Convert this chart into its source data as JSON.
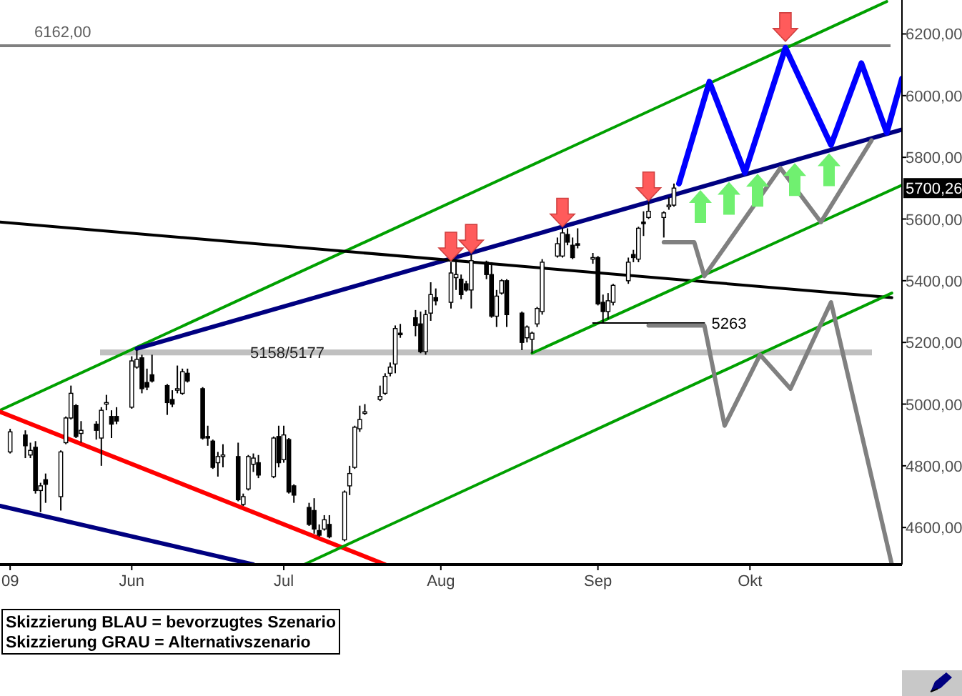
{
  "chart_data": {
    "type": "candlestick",
    "x": [
      "2009-05-08",
      "2009-05-11",
      "2009-05-12",
      "2009-05-13",
      "2009-05-14",
      "2009-05-15",
      "2009-05-18",
      "2009-05-19",
      "2009-05-20",
      "2009-05-21",
      "2009-05-22",
      "2009-05-25",
      "2009-05-26",
      "2009-05-27",
      "2009-05-28",
      "2009-05-29",
      "2009-06-01",
      "2009-06-02",
      "2009-06-03",
      "2009-06-04",
      "2009-06-05",
      "2009-06-08",
      "2009-06-09",
      "2009-06-10",
      "2009-06-11",
      "2009-06-12",
      "2009-06-15",
      "2009-06-16",
      "2009-06-17",
      "2009-06-18",
      "2009-06-19",
      "2009-06-22",
      "2009-06-23",
      "2009-06-24",
      "2009-06-25",
      "2009-06-26",
      "2009-06-29",
      "2009-06-30",
      "2009-07-01",
      "2009-07-02",
      "2009-07-03",
      "2009-07-06",
      "2009-07-07",
      "2009-07-08",
      "2009-07-09",
      "2009-07-10",
      "2009-07-13",
      "2009-07-14",
      "2009-07-15",
      "2009-07-16",
      "2009-07-17",
      "2009-07-20",
      "2009-07-21",
      "2009-07-22",
      "2009-07-23",
      "2009-07-24",
      "2009-07-27",
      "2009-07-28",
      "2009-07-29",
      "2009-07-30",
      "2009-07-31",
      "2009-08-03",
      "2009-08-04",
      "2009-08-05",
      "2009-08-06",
      "2009-08-07",
      "2009-08-10",
      "2009-08-11",
      "2009-08-12",
      "2009-08-13",
      "2009-08-14",
      "2009-08-17",
      "2009-08-18",
      "2009-08-19",
      "2009-08-20",
      "2009-08-21",
      "2009-08-24",
      "2009-08-25",
      "2009-08-26",
      "2009-08-27",
      "2009-08-28",
      "2009-08-31",
      "2009-09-01",
      "2009-09-02",
      "2009-09-03",
      "2009-09-04",
      "2009-09-07",
      "2009-09-08",
      "2009-09-09",
      "2009-09-10",
      "2009-09-11",
      "2009-09-14",
      "2009-09-15",
      "2009-09-16"
    ],
    "ohlc": [
      [
        4845,
        4920,
        4840,
        4910
      ],
      [
        4900,
        4915,
        4825,
        4865
      ],
      [
        4835,
        4875,
        4825,
        4850
      ],
      [
        4860,
        4880,
        4710,
        4720
      ],
      [
        4720,
        4745,
        4650,
        4735
      ],
      [
        4755,
        4775,
        4680,
        4740
      ],
      [
        4700,
        4850,
        4655,
        4845
      ],
      [
        4875,
        4960,
        4870,
        4955
      ],
      [
        4955,
        5060,
        4950,
        5035
      ],
      [
        4995,
        5000,
        4890,
        4895
      ],
      [
        4905,
        4945,
        4875,
        4915
      ],
      [
        4935,
        4945,
        4885,
        4915
      ],
      [
        4890,
        4990,
        4800,
        4980
      ],
      [
        5000,
        5030,
        4980,
        5005
      ],
      [
        4960,
        4980,
        4890,
        4935
      ],
      [
        4960,
        4990,
        4935,
        4945
      ],
      [
        4990,
        5155,
        4985,
        5140
      ],
      [
        5120,
        5175,
        5115,
        5145
      ],
      [
        5150,
        5160,
        5035,
        5050
      ],
      [
        5070,
        5115,
        5045,
        5055
      ],
      [
        5095,
        5160,
        5070,
        5075
      ],
      [
        5060,
        5065,
        4965,
        5005
      ],
      [
        5015,
        5045,
        4990,
        5000
      ],
      [
        5045,
        5125,
        5035,
        5050
      ],
      [
        5035,
        5115,
        5030,
        5105
      ],
      [
        5100,
        5115,
        5070,
        5075
      ],
      [
        5050,
        5055,
        4885,
        4890
      ],
      [
        4895,
        4930,
        4865,
        4890
      ],
      [
        4880,
        4885,
        4790,
        4795
      ],
      [
        4810,
        4845,
        4765,
        4830
      ],
      [
        4830,
        4870,
        4795,
        4835
      ],
      [
        4830,
        4875,
        4685,
        4690
      ],
      [
        4675,
        4710,
        4670,
        4700
      ],
      [
        4725,
        4835,
        4720,
        4830
      ],
      [
        4805,
        4840,
        4780,
        4825
      ],
      [
        4810,
        4835,
        4760,
        4770
      ],
      [
        4765,
        4895,
        4760,
        4890
      ],
      [
        4895,
        4930,
        4795,
        4810
      ],
      [
        4820,
        4930,
        4810,
        4900
      ],
      [
        4885,
        4890,
        4710,
        4715
      ],
      [
        4735,
        4740,
        4680,
        4705
      ],
      [
        4665,
        4680,
        4605,
        4610
      ],
      [
        4655,
        4695,
        4580,
        4595
      ],
      [
        4590,
        4610,
        4570,
        4575
      ],
      [
        4595,
        4640,
        4590,
        4625
      ],
      [
        4610,
        4640,
        4565,
        4570
      ],
      [
        4560,
        4720,
        4555,
        4715
      ],
      [
        4735,
        4800,
        4705,
        4775
      ],
      [
        4795,
        4930,
        4790,
        4925
      ],
      [
        4920,
        4995,
        4910,
        4950
      ],
      [
        4970,
        5000,
        4965,
        4975
      ],
      [
        5015,
        5060,
        5010,
        5025
      ],
      [
        5035,
        5100,
        5030,
        5090
      ],
      [
        5100,
        5135,
        5090,
        5120
      ],
      [
        5130,
        5255,
        5100,
        5245
      ],
      [
        5230,
        5260,
        5215,
        5225
      ],
      [
        5280,
        5305,
        5220,
        5255
      ],
      [
        5260,
        5300,
        5165,
        5170
      ],
      [
        5170,
        5305,
        5160,
        5290
      ],
      [
        5295,
        5395,
        5270,
        5355
      ],
      [
        5345,
        5375,
        5320,
        5335
      ],
      [
        5330,
        5460,
        5310,
        5425
      ],
      [
        5410,
        5465,
        5370,
        5420
      ],
      [
        5405,
        5420,
        5340,
        5355
      ],
      [
        5390,
        5400,
        5365,
        5370
      ],
      [
        5370,
        5485,
        5310,
        5465
      ],
      [
        5460,
        5465,
        5405,
        5420
      ],
      [
        5420,
        5460,
        5280,
        5285
      ],
      [
        5285,
        5370,
        5250,
        5350
      ],
      [
        5360,
        5405,
        5355,
        5400
      ],
      [
        5400,
        5405,
        5250,
        5290
      ],
      [
        5295,
        5300,
        5175,
        5200
      ],
      [
        5215,
        5255,
        5200,
        5250
      ],
      [
        5210,
        5235,
        5165,
        5230
      ],
      [
        5260,
        5315,
        5250,
        5310
      ],
      [
        5300,
        5470,
        5290,
        5460
      ],
      [
        5480,
        5540,
        5475,
        5520
      ],
      [
        5480,
        5570,
        5475,
        5555
      ],
      [
        5550,
        5570,
        5515,
        5525
      ],
      [
        5515,
        5540,
        5470,
        5475
      ],
      [
        5520,
        5570,
        5505,
        5515
      ],
      [
        5470,
        5490,
        5455,
        5475
      ],
      [
        5475,
        5480,
        5320,
        5325
      ],
      [
        5330,
        5355,
        5263,
        5300
      ],
      [
        5300,
        5360,
        5275,
        5335
      ],
      [
        5330,
        5390,
        5320,
        5385
      ],
      [
        5400,
        5475,
        5390,
        5460
      ],
      [
        5485,
        5500,
        5460,
        5475
      ],
      [
        5470,
        5575,
        5460,
        5570
      ],
      [
        5590,
        5625,
        5545,
        5585
      ],
      [
        5605,
        5655,
        5600,
        5625
      ],
      [
        5605,
        5625,
        5540,
        5620
      ],
      [
        5640,
        5670,
        5630,
        5645
      ],
      [
        5645,
        5715,
        5640,
        5700.26
      ]
    ],
    "series": [
      {
        "type": "line",
        "color": "#00a000",
        "x": [
          "2009-05-06",
          "2009-10-28"
        ],
        "values": [
          4980,
          6305
        ]
      },
      {
        "type": "line",
        "color": "#000080",
        "x": [
          "2009-06-02",
          "2009-10-31"
        ],
        "values": [
          5180,
          5890
        ]
      },
      {
        "type": "line",
        "color": "#000080",
        "x": [
          "2009-05-06",
          "2009-06-25"
        ],
        "values": [
          4670,
          4480
        ]
      },
      {
        "type": "line",
        "color": "#ff0000",
        "x": [
          "2009-05-06",
          "2009-07-21"
        ],
        "values": [
          4975,
          4480
        ]
      },
      {
        "type": "line",
        "color": "#000000",
        "x": [
          "2009-05-06",
          "2009-10-29"
        ],
        "values": [
          5590,
          5345
        ]
      },
      {
        "type": "line",
        "color": "#00a000",
        "x": [
          "2009-08-19",
          "2009-10-31"
        ],
        "values": [
          5165,
          5710
        ]
      },
      {
        "type": "line",
        "color": "#00a000",
        "x": [
          "2009-07-05",
          "2009-10-29"
        ],
        "values": [
          4480,
          5360
        ]
      },
      {
        "type": "line",
        "color": "#000000",
        "x": [
          "2009-08-31",
          "2009-09-22"
        ],
        "values": [
          5263,
          5263
        ]
      },
      {
        "type": "line",
        "color": "#808080",
        "x": [
          "2009-09-14",
          "2009-09-20",
          "2009-09-22",
          "2009-10-07",
          "2009-10-15",
          "2009-10-25"
        ],
        "values": [
          5525,
          5525,
          5415,
          5765,
          5590,
          5855
        ]
      },
      {
        "type": "line",
        "color": "#808080",
        "x": [
          "2009-09-11",
          "2009-09-22",
          "2009-09-26",
          "2009-10-03",
          "2009-10-09",
          "2009-10-17",
          "2009-10-29"
        ],
        "values": [
          5255,
          5255,
          4930,
          5160,
          5050,
          5330,
          4480
        ]
      },
      {
        "type": "line",
        "color": "#0000ff",
        "x": [
          "2009-09-17",
          "2009-09-23",
          "2009-09-30",
          "2009-10-08",
          "2009-10-17",
          "2009-10-23",
          "2009-10-28",
          "2009-10-31"
        ],
        "values": [
          5715,
          6045,
          5750,
          6155,
          5840,
          6105,
          5880,
          6055
        ]
      }
    ],
    "xlim": [
      "2009-05-06",
      "2009-10-31"
    ],
    "xticks": [
      {
        "value": "2009-05-08",
        "label": "09"
      },
      {
        "value": "2009-06-01",
        "label": "Jun"
      },
      {
        "value": "2009-07-01",
        "label": "Jul"
      },
      {
        "value": "2009-08-01",
        "label": "Aug"
      },
      {
        "value": "2009-09-01",
        "label": "Sep"
      },
      {
        "value": "2009-10-01",
        "label": "Okt"
      }
    ],
    "ylim": [
      4480,
      6310
    ],
    "yticks": [
      {
        "value": 4600,
        "label": "4600,00"
      },
      {
        "value": 4800,
        "label": "4800,00"
      },
      {
        "value": 5000,
        "label": "5000,00"
      },
      {
        "value": 5200,
        "label": "5200,00"
      },
      {
        "value": 5400,
        "label": "5400,00"
      },
      {
        "value": 5600,
        "label": "5600,00"
      },
      {
        "value": 5800,
        "label": "5800,00"
      },
      {
        "value": 6000,
        "label": "6000,00"
      },
      {
        "value": 6200,
        "label": "6200,00"
      }
    ],
    "ref_lines": [
      {
        "axis": "y",
        "value": 6162,
        "label": "6162,00",
        "color": "#808080"
      }
    ],
    "bands": [
      {
        "axis": "y",
        "from": 5158,
        "to": 5177,
        "label": "5158/5177",
        "color": "#c0c0c0"
      }
    ],
    "annotations": [
      "Skizzierung BLAU = bevorzugtes Szenario",
      "Skizzierung GRAU = Alternativszenario",
      {
        "text": "5263",
        "x": "2009-09-22",
        "y": 5263
      },
      {
        "text": "5700,26",
        "y": 5700.26
      }
    ]
  }
}
